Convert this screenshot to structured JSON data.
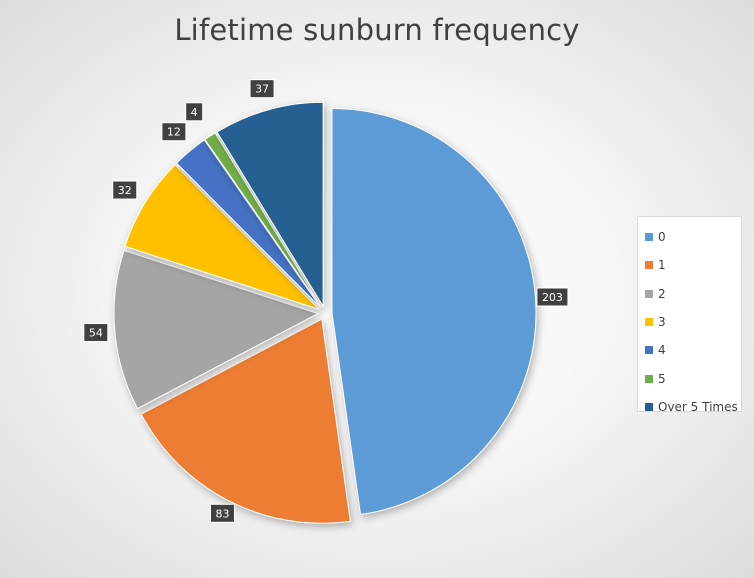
{
  "chart_data": {
    "type": "pie",
    "title": "Lifetime sunburn frequency",
    "categories": [
      "0",
      "1",
      "2",
      "3",
      "4",
      "5",
      "Over 5 Times"
    ],
    "values": [
      203,
      83,
      54,
      32,
      12,
      4,
      37
    ],
    "colors": [
      "#5B9BD5",
      "#ED7D31",
      "#A5A5A5",
      "#FFC000",
      "#4472C4",
      "#70AD47",
      "#255E91"
    ],
    "legend_position": "right",
    "data_labels": true
  }
}
